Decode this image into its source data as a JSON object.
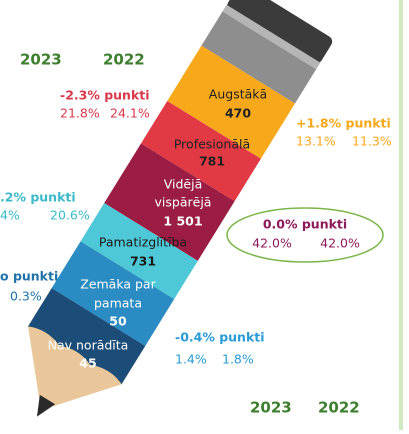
{
  "year_headers": {
    "top": [
      "2023",
      "2022"
    ],
    "bottom": [
      "2023",
      "2022"
    ]
  },
  "levels": [
    {
      "name": [
        "Augstākā"
      ],
      "count": "470",
      "change": "-2.3% punkti",
      "v2023": "21.8%",
      "v2022": "24.1%"
    },
    {
      "name": [
        "Profesionālā"
      ],
      "count": "781",
      "change": "+1.8% punkti",
      "v2023": "13.1%",
      "v2022": "11.3%"
    },
    {
      "name": [
        "Vidējā",
        "vispārējā"
      ],
      "count": "1 501",
      "change": "0.0% punkti",
      "v2023": "42.0%",
      "v2022": "42.0%"
    },
    {
      "name": [
        "Pamatizglītība"
      ],
      "count": "731",
      "change": ".2% punkti",
      "v2023": "4%",
      "v2022": "20.6%"
    },
    {
      "name": [
        "Zemāka par",
        "pamata"
      ],
      "count": "50",
      "change": "o punkti",
      "v2022": "0.3%"
    },
    {
      "name": [
        "Nav norādīta"
      ],
      "count": "45",
      "change": "-0.4% punkti",
      "v2023": "1.4%",
      "v2022": "1.8%"
    }
  ]
}
